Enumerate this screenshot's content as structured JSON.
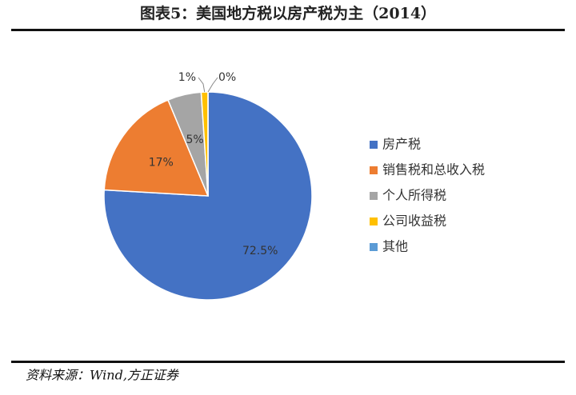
{
  "chart_data": {
    "type": "pie",
    "title": "图表5：美国地方税以房产税为主（2014）",
    "categories": [
      "房产税",
      "销售税和总收入税",
      "个人所得税",
      "公司收益税",
      "其他"
    ],
    "values": [
      72.5,
      17,
      5,
      1,
      0
    ],
    "value_labels": [
      "72.5%",
      "17%",
      "5%",
      "1%",
      "0%"
    ],
    "colors": [
      "#4472c4",
      "#ed7d31",
      "#a5a5a5",
      "#ffc000",
      "#5b9bd5"
    ],
    "source": "资料来源：Wind,方正证券"
  }
}
